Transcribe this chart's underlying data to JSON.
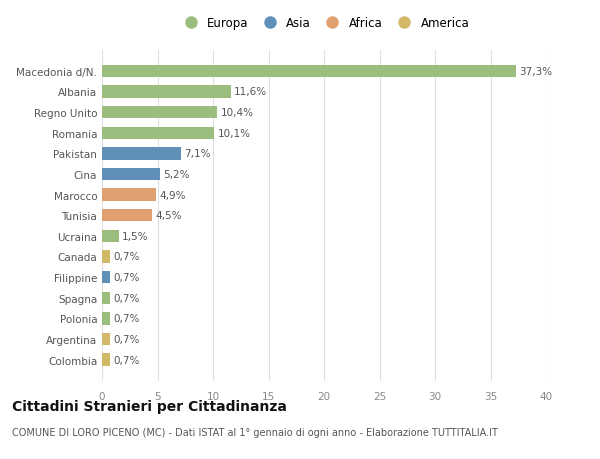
{
  "categories": [
    "Colombia",
    "Argentina",
    "Polonia",
    "Spagna",
    "Filippine",
    "Canada",
    "Ucraina",
    "Tunisia",
    "Marocco",
    "Cina",
    "Pakistan",
    "Romania",
    "Regno Unito",
    "Albania",
    "Macedonia d/N."
  ],
  "values": [
    0.7,
    0.7,
    0.7,
    0.7,
    0.7,
    0.7,
    1.5,
    4.5,
    4.9,
    5.2,
    7.1,
    10.1,
    10.4,
    11.6,
    37.3
  ],
  "labels": [
    "0,7%",
    "0,7%",
    "0,7%",
    "0,7%",
    "0,7%",
    "0,7%",
    "1,5%",
    "4,5%",
    "4,9%",
    "5,2%",
    "7,1%",
    "10,1%",
    "10,4%",
    "11,6%",
    "37,3%"
  ],
  "colors": [
    "#d4b86a",
    "#d4b86a",
    "#9bbe7e",
    "#9bbe7e",
    "#6090b8",
    "#d4b86a",
    "#9bbe7e",
    "#e0a070",
    "#e0a070",
    "#6090b8",
    "#6090b8",
    "#9bbe7e",
    "#9bbe7e",
    "#9bbe7e",
    "#9bbe7e"
  ],
  "continent_colors": {
    "Europa": "#9bbe7e",
    "Asia": "#6090b8",
    "Africa": "#e0a070",
    "America": "#d4b86a"
  },
  "xlim": [
    0,
    40
  ],
  "xticks": [
    0,
    5,
    10,
    15,
    20,
    25,
    30,
    35,
    40
  ],
  "title": "Cittadini Stranieri per Cittadinanza",
  "subtitle": "COMUNE DI LORO PICENO (MC) - Dati ISTAT al 1° gennaio di ogni anno - Elaborazione TUTTITALIA.IT",
  "bg_color": "#ffffff",
  "grid_color": "#e0e0e0",
  "bar_height": 0.6,
  "label_fontsize": 7.5,
  "tick_fontsize": 7.5,
  "title_fontsize": 10,
  "subtitle_fontsize": 7,
  "legend_fontsize": 8.5
}
